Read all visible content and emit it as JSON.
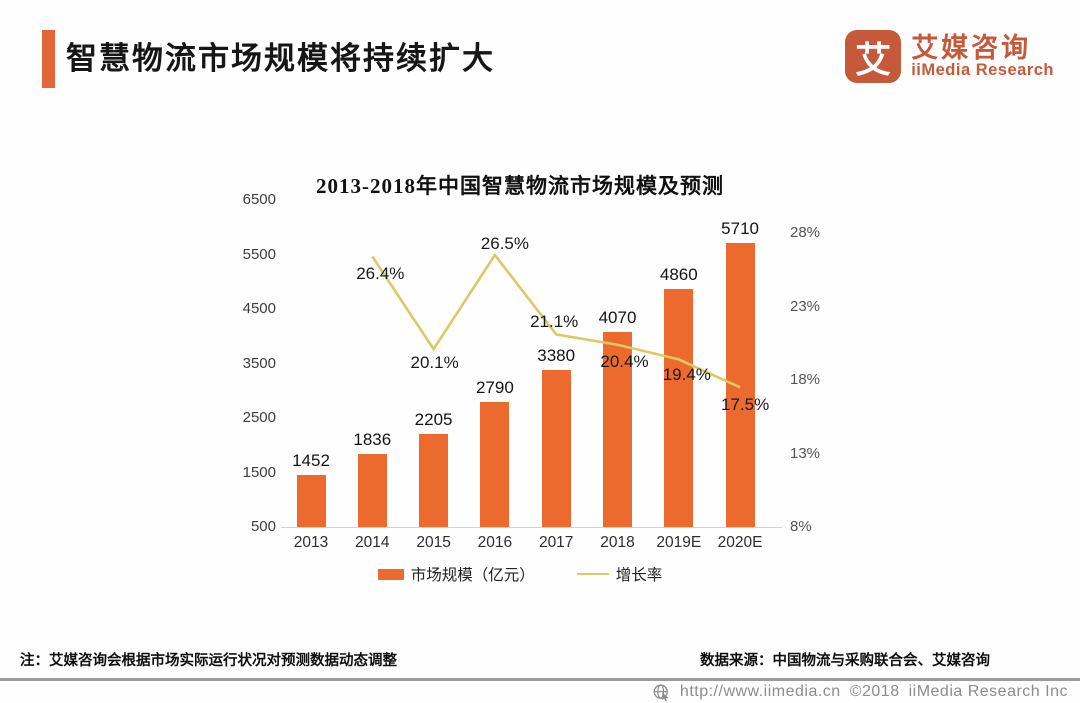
{
  "header": {
    "title": "智慧物流市场规模将持续扩大"
  },
  "logo": {
    "glyph": "艾",
    "name_cn": "艾媒咨询",
    "name_en": "iiMedia Research",
    "color": "#c6593a"
  },
  "accent_color": "#e2663a",
  "chart_data": {
    "type": "bar+line combo",
    "title": "2013-2018年中国智慧物流市场规模及预测",
    "categories": [
      "2013",
      "2014",
      "2015",
      "2016",
      "2017",
      "2018",
      "2019E",
      "2020E"
    ],
    "series": [
      {
        "name": "市场规模（亿元）",
        "type": "bar",
        "axis": "left",
        "color": "#ed6a2f",
        "values": [
          1452,
          1836,
          2205,
          2790,
          3380,
          4070,
          4860,
          5710
        ]
      },
      {
        "name": "增长率",
        "type": "line",
        "axis": "right",
        "color": "#dcc865",
        "values": [
          null,
          26.4,
          20.1,
          26.5,
          21.1,
          20.4,
          19.4,
          17.5
        ],
        "labels": [
          null,
          "26.4%",
          "20.1%",
          "26.5%",
          "21.1%",
          "20.4%",
          "19.4%",
          "17.5%"
        ],
        "label_offsets": [
          null,
          [
            8,
            17
          ],
          [
            1,
            14
          ],
          [
            10,
            -11
          ],
          [
            -2,
            -12
          ],
          [
            7,
            17
          ],
          [
            8,
            16
          ],
          [
            5,
            18
          ]
        ]
      }
    ],
    "left_axis": {
      "ticks": [
        6500,
        5500,
        4500,
        3500,
        2500,
        1500,
        500
      ],
      "min": 500,
      "max": 6500
    },
    "right_axis": {
      "ticks": [
        "28%",
        "23%",
        "18%",
        "13%",
        "8%"
      ],
      "min": 8,
      "max": 28
    },
    "grid": false,
    "legend_position": "bottom"
  },
  "notes": {
    "left": "注：艾媒咨询会根据市场实际运行状况对预测数据动态调整",
    "right": "数据来源：中国物流与采购联合会、艾媒咨询"
  },
  "footer": {
    "url": "http://www.iimedia.cn",
    "copyright": "©2018",
    "company": "iiMedia Research Inc"
  }
}
